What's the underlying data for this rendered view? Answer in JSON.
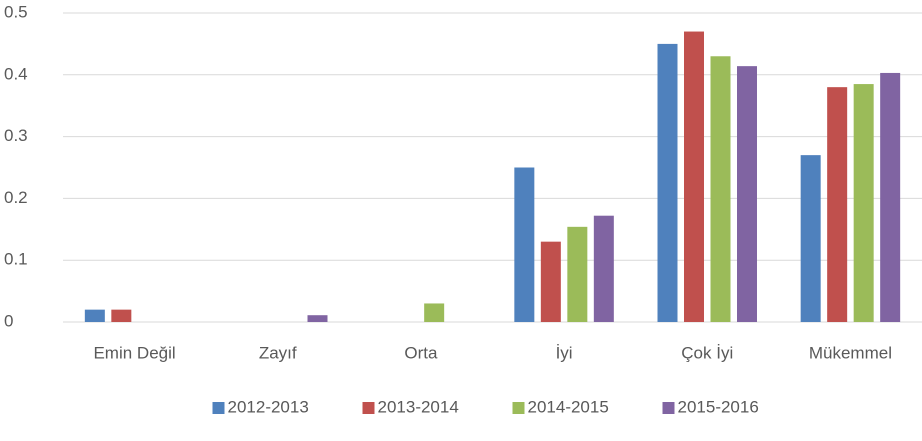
{
  "chart_data": {
    "type": "bar",
    "categories": [
      "Emin Değil",
      "Zayıf",
      "Orta",
      "İyi",
      "Çok İyi",
      "Mükemmel"
    ],
    "series": [
      {
        "name": "2012-2013",
        "color": "#4f81bd",
        "values": [
          0.02,
          0,
          0,
          0.25,
          0.45,
          0.27
        ]
      },
      {
        "name": "2013-2014",
        "color": "#c0504d",
        "values": [
          0.02,
          0,
          0,
          0.13,
          0.47,
          0.38
        ]
      },
      {
        "name": "2014-2015",
        "color": "#9bbb59",
        "values": [
          0,
          0,
          0.03,
          0.154,
          0.43,
          0.385
        ]
      },
      {
        "name": "2015-2016",
        "color": "#8064a2",
        "values": [
          0,
          0.011,
          0,
          0.172,
          0.414,
          0.403
        ]
      }
    ],
    "ylim": [
      0,
      0.5
    ],
    "yticks": [
      0,
      0.1,
      0.2,
      0.3,
      0.4,
      0.5
    ],
    "grid": true,
    "legend": "bottom"
  }
}
